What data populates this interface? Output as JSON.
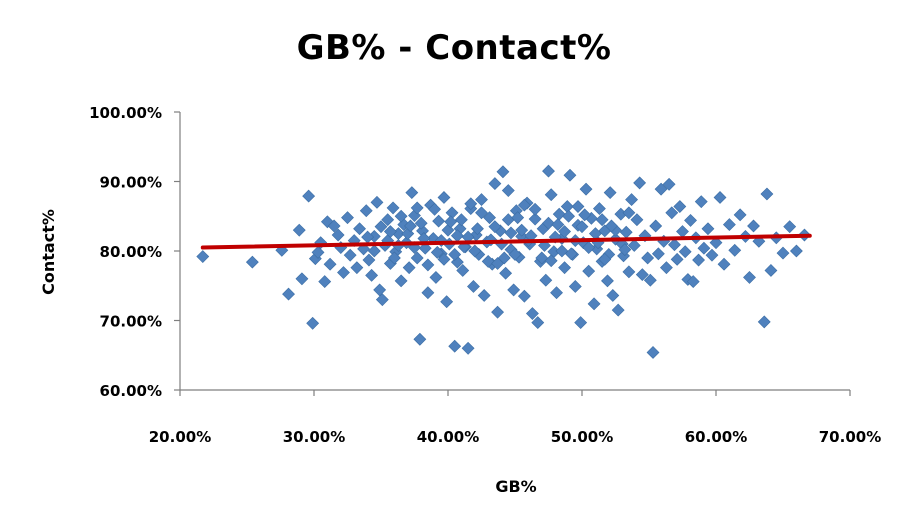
{
  "chart_data": {
    "type": "scatter",
    "title": "GB% - Contact%",
    "xlabel": "GB%",
    "ylabel": "Contact%",
    "xlim": [
      0.2,
      0.7
    ],
    "ylim": [
      0.6,
      1.0
    ],
    "x_ticks": [
      "20.00%",
      "30.00%",
      "40.00%",
      "50.00%",
      "60.00%",
      "70.00%"
    ],
    "y_ticks": [
      "60.00%",
      "70.00%",
      "80.00%",
      "90.00%",
      "100.00%"
    ],
    "marker_color": "#4f81bd",
    "trendline_color": "#c00000",
    "grid": false,
    "legend": "none",
    "trendline": {
      "x": [
        0.217,
        0.67
      ],
      "y": [
        0.805,
        0.822
      ]
    },
    "series": [
      {
        "points": [
          [
            0.217,
            0.792
          ],
          [
            0.254,
            0.784
          ],
          [
            0.276,
            0.801
          ],
          [
            0.281,
            0.738
          ],
          [
            0.289,
            0.83
          ],
          [
            0.291,
            0.76
          ],
          [
            0.296,
            0.879
          ],
          [
            0.299,
            0.696
          ],
          [
            0.301,
            0.789
          ],
          [
            0.303,
            0.798
          ],
          [
            0.305,
            0.812
          ],
          [
            0.308,
            0.756
          ],
          [
            0.31,
            0.842
          ],
          [
            0.312,
            0.781
          ],
          [
            0.315,
            0.836
          ],
          [
            0.318,
            0.823
          ],
          [
            0.32,
            0.805
          ],
          [
            0.322,
            0.769
          ],
          [
            0.325,
            0.848
          ],
          [
            0.327,
            0.794
          ],
          [
            0.33,
            0.815
          ],
          [
            0.332,
            0.776
          ],
          [
            0.334,
            0.832
          ],
          [
            0.337,
            0.803
          ],
          [
            0.339,
            0.858
          ],
          [
            0.341,
            0.787
          ],
          [
            0.343,
            0.765
          ],
          [
            0.345,
            0.821
          ],
          [
            0.347,
            0.87
          ],
          [
            0.349,
            0.744
          ],
          [
            0.351,
            0.73
          ],
          [
            0.353,
            0.808
          ],
          [
            0.355,
            0.845
          ],
          [
            0.357,
            0.782
          ],
          [
            0.359,
            0.862
          ],
          [
            0.361,
            0.799
          ],
          [
            0.363,
            0.825
          ],
          [
            0.365,
            0.757
          ],
          [
            0.367,
            0.838
          ],
          [
            0.369,
            0.812
          ],
          [
            0.371,
            0.776
          ],
          [
            0.373,
            0.884
          ],
          [
            0.375,
            0.851
          ],
          [
            0.377,
            0.79
          ],
          [
            0.379,
            0.673
          ],
          [
            0.381,
            0.829
          ],
          [
            0.383,
            0.804
          ],
          [
            0.385,
            0.74
          ],
          [
            0.387,
            0.866
          ],
          [
            0.389,
            0.818
          ],
          [
            0.391,
            0.762
          ],
          [
            0.393,
            0.843
          ],
          [
            0.395,
            0.796
          ],
          [
            0.397,
            0.877
          ],
          [
            0.399,
            0.727
          ],
          [
            0.401,
            0.81
          ],
          [
            0.403,
            0.855
          ],
          [
            0.405,
            0.663
          ],
          [
            0.407,
            0.784
          ],
          [
            0.409,
            0.832
          ],
          [
            0.411,
            0.772
          ],
          [
            0.413,
            0.806
          ],
          [
            0.415,
            0.66
          ],
          [
            0.417,
            0.861
          ],
          [
            0.419,
            0.749
          ],
          [
            0.421,
            0.823
          ],
          [
            0.423,
            0.795
          ],
          [
            0.425,
            0.874
          ],
          [
            0.427,
            0.736
          ],
          [
            0.429,
            0.813
          ],
          [
            0.431,
            0.848
          ],
          [
            0.433,
            0.781
          ],
          [
            0.435,
            0.897
          ],
          [
            0.437,
            0.712
          ],
          [
            0.439,
            0.829
          ],
          [
            0.441,
            0.914
          ],
          [
            0.443,
            0.768
          ],
          [
            0.445,
            0.887
          ],
          [
            0.447,
            0.802
          ],
          [
            0.449,
            0.744
          ],
          [
            0.451,
            0.858
          ],
          [
            0.453,
            0.791
          ],
          [
            0.455,
            0.821
          ],
          [
            0.457,
            0.735
          ],
          [
            0.459,
            0.869
          ],
          [
            0.461,
            0.81
          ],
          [
            0.463,
            0.71
          ],
          [
            0.465,
            0.846
          ],
          [
            0.467,
            0.697
          ],
          [
            0.469,
            0.785
          ],
          [
            0.471,
            0.832
          ],
          [
            0.473,
            0.758
          ],
          [
            0.475,
            0.915
          ],
          [
            0.477,
            0.881
          ],
          [
            0.479,
            0.799
          ],
          [
            0.481,
            0.74
          ],
          [
            0.483,
            0.853
          ],
          [
            0.485,
            0.818
          ],
          [
            0.487,
            0.776
          ],
          [
            0.489,
            0.864
          ],
          [
            0.491,
            0.909
          ],
          [
            0.493,
            0.795
          ],
          [
            0.495,
            0.749
          ],
          [
            0.497,
            0.837
          ],
          [
            0.499,
            0.697
          ],
          [
            0.501,
            0.812
          ],
          [
            0.503,
            0.889
          ],
          [
            0.505,
            0.771
          ],
          [
            0.507,
            0.847
          ],
          [
            0.509,
            0.724
          ],
          [
            0.511,
            0.803
          ],
          [
            0.513,
            0.861
          ],
          [
            0.515,
            0.785
          ],
          [
            0.517,
            0.829
          ],
          [
            0.519,
            0.757
          ],
          [
            0.521,
            0.884
          ],
          [
            0.523,
            0.736
          ],
          [
            0.525,
            0.817
          ],
          [
            0.527,
            0.715
          ],
          [
            0.529,
            0.853
          ],
          [
            0.531,
            0.793
          ],
          [
            0.533,
            0.827
          ],
          [
            0.535,
            0.77
          ],
          [
            0.537,
            0.874
          ],
          [
            0.539,
            0.808
          ],
          [
            0.541,
            0.845
          ],
          [
            0.543,
            0.898
          ],
          [
            0.545,
            0.766
          ],
          [
            0.547,
            0.822
          ],
          [
            0.549,
            0.79
          ],
          [
            0.551,
            0.758
          ],
          [
            0.553,
            0.654
          ],
          [
            0.555,
            0.836
          ],
          [
            0.557,
            0.796
          ],
          [
            0.559,
            0.889
          ],
          [
            0.561,
            0.814
          ],
          [
            0.563,
            0.776
          ],
          [
            0.565,
            0.896
          ],
          [
            0.567,
            0.855
          ],
          [
            0.569,
            0.809
          ],
          [
            0.571,
            0.788
          ],
          [
            0.573,
            0.864
          ],
          [
            0.575,
            0.828
          ],
          [
            0.577,
            0.799
          ],
          [
            0.579,
            0.759
          ],
          [
            0.581,
            0.844
          ],
          [
            0.583,
            0.756
          ],
          [
            0.585,
            0.819
          ],
          [
            0.587,
            0.787
          ],
          [
            0.589,
            0.871
          ],
          [
            0.591,
            0.804
          ],
          [
            0.594,
            0.832
          ],
          [
            0.597,
            0.794
          ],
          [
            0.6,
            0.812
          ],
          [
            0.603,
            0.877
          ],
          [
            0.606,
            0.781
          ],
          [
            0.61,
            0.838
          ],
          [
            0.614,
            0.801
          ],
          [
            0.618,
            0.852
          ],
          [
            0.622,
            0.821
          ],
          [
            0.625,
            0.762
          ],
          [
            0.628,
            0.836
          ],
          [
            0.632,
            0.814
          ],
          [
            0.636,
            0.698
          ],
          [
            0.638,
            0.882
          ],
          [
            0.641,
            0.772
          ],
          [
            0.645,
            0.819
          ],
          [
            0.65,
            0.797
          ],
          [
            0.655,
            0.835
          ],
          [
            0.66,
            0.8
          ],
          [
            0.666,
            0.823
          ]
        ]
      },
      {
        "points": [
          [
            0.34,
            0.82
          ],
          [
            0.345,
            0.8
          ],
          [
            0.35,
            0.835
          ],
          [
            0.355,
            0.815
          ],
          [
            0.36,
            0.79
          ],
          [
            0.365,
            0.85
          ],
          [
            0.37,
            0.825
          ],
          [
            0.375,
            0.805
          ],
          [
            0.38,
            0.84
          ],
          [
            0.385,
            0.78
          ],
          [
            0.39,
            0.86
          ],
          [
            0.395,
            0.815
          ],
          [
            0.4,
            0.83
          ],
          [
            0.405,
            0.795
          ],
          [
            0.41,
            0.845
          ],
          [
            0.415,
            0.82
          ],
          [
            0.42,
            0.8
          ],
          [
            0.425,
            0.855
          ],
          [
            0.43,
            0.785
          ],
          [
            0.435,
            0.835
          ],
          [
            0.44,
            0.81
          ],
          [
            0.445,
            0.845
          ],
          [
            0.45,
            0.795
          ],
          [
            0.455,
            0.83
          ],
          [
            0.46,
            0.815
          ],
          [
            0.465,
            0.86
          ],
          [
            0.47,
            0.79
          ],
          [
            0.475,
            0.84
          ],
          [
            0.48,
            0.82
          ],
          [
            0.485,
            0.8
          ],
          [
            0.49,
            0.85
          ],
          [
            0.495,
            0.815
          ],
          [
            0.5,
            0.835
          ],
          [
            0.505,
            0.805
          ],
          [
            0.51,
            0.825
          ],
          [
            0.515,
            0.845
          ],
          [
            0.52,
            0.795
          ],
          [
            0.525,
            0.83
          ],
          [
            0.53,
            0.81
          ],
          [
            0.535,
            0.855
          ],
          [
            0.363,
            0.808
          ],
          [
            0.372,
            0.836
          ],
          [
            0.382,
            0.818
          ],
          [
            0.392,
            0.798
          ],
          [
            0.402,
            0.842
          ],
          [
            0.412,
            0.806
          ],
          [
            0.422,
            0.832
          ],
          [
            0.432,
            0.816
          ],
          [
            0.442,
            0.79
          ],
          [
            0.452,
            0.848
          ],
          [
            0.462,
            0.822
          ],
          [
            0.472,
            0.808
          ],
          [
            0.482,
            0.838
          ],
          [
            0.492,
            0.796
          ],
          [
            0.502,
            0.852
          ],
          [
            0.512,
            0.812
          ],
          [
            0.522,
            0.836
          ],
          [
            0.532,
            0.802
          ],
          [
            0.377,
            0.862
          ],
          [
            0.397,
            0.788
          ],
          [
            0.417,
            0.868
          ],
          [
            0.437,
            0.782
          ],
          [
            0.457,
            0.866
          ],
          [
            0.477,
            0.786
          ],
          [
            0.497,
            0.864
          ],
          [
            0.517,
            0.788
          ],
          [
            0.357,
            0.828
          ],
          [
            0.407,
            0.822
          ],
          [
            0.447,
            0.826
          ],
          [
            0.487,
            0.828
          ]
        ]
      }
    ]
  }
}
